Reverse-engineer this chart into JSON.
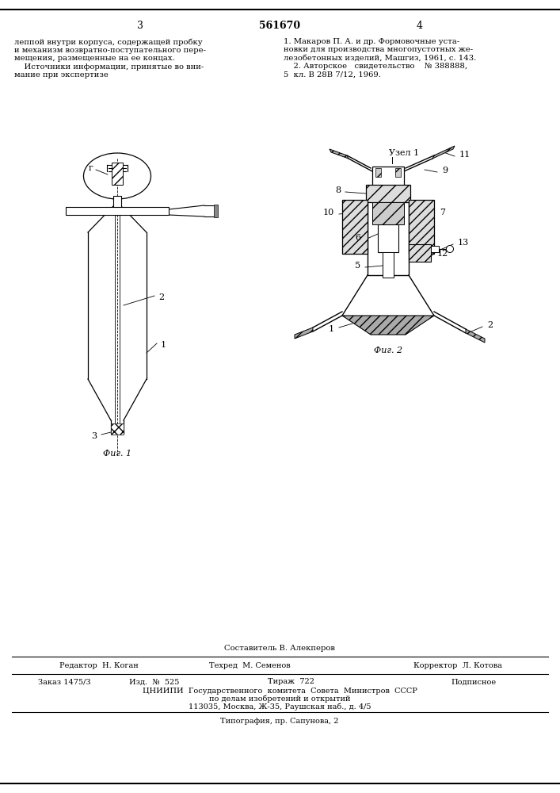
{
  "background_color": "#ffffff",
  "page_number_center": "561670",
  "page_number_left": "3",
  "page_number_right": "4",
  "text_left_col": "леппой внутри корпуса, содержащей пробку\nи механизм возвратно-поступательного пере-\nмещения, размещенные на ее концах.\n    Источники информации, принятые во вни-\nмание при экспертизе",
  "text_right_col": "1. Макаров П. А. и др. Формовочные уста-\nновки для производства многопустотных же-\nлезобетонных изделий, Машгиз, 1961, с. 143.\n    2. Авторское   свидетельство    № 388888,\n5  кл. В 28В 7/12, 1969.",
  "fig1_label": "Фиг. 1",
  "fig2_label": "Фиг. 2",
  "node_label": "Узел 1",
  "footer_sestavitel": "Составитель В. Алекперов",
  "footer_editor": "Редактор  Н. Коган",
  "footer_tehred": "Техред  М. Семенов",
  "footer_corrector": "Корректор  Л. Котова",
  "footer_zakaz": "Заказ 1475/3",
  "footer_izd": "Изд.  №  525",
  "footer_tirazh": "Тираж  722",
  "footer_podpisnoe": "Подписное",
  "footer_cniipи": "ЦНИИПИ  Государственного  комитета  Совета  Министров  СССР",
  "footer_po_delam": "по делам изобретений и открытий",
  "footer_address": "113035, Москва, Ж-35, Раушская наб., д. 4/5",
  "footer_tipografia": "Типография, пр. Сапунова, 2",
  "line_color": "#000000",
  "label_1_fig1": "1",
  "label_2_fig1": "2",
  "label_3_fig1": "3",
  "label_r_fig1": "г",
  "label_1_fig2": "1",
  "label_2_fig2": "2",
  "label_5_fig2": "5",
  "label_6_fig2": "6",
  "label_7_fig2": "7",
  "label_8_fig2": "8",
  "label_9_fig2": "9",
  "label_10_fig2": "10",
  "label_11_fig2": "11",
  "label_12_fig2": "12",
  "label_13_fig2": "13"
}
